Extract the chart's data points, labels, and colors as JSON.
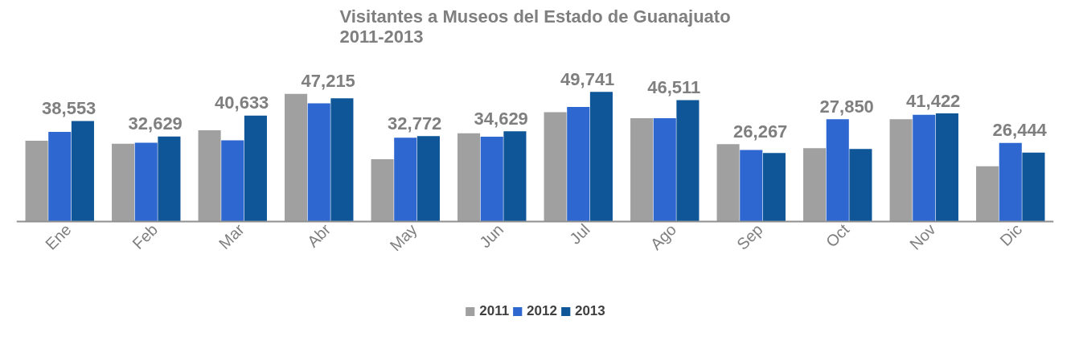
{
  "chart_data": {
    "type": "bar",
    "title": "Visitantes a Museos del Estado de Guanajuato\n2011-2013",
    "categories": [
      "Ene",
      "Feb",
      "Mar",
      "Abr",
      "May",
      "Jun",
      "Jul",
      "Ago",
      "Sep",
      "Oct",
      "Nov",
      "Dic"
    ],
    "series": [
      {
        "name": "2011",
        "color": "#a0a0a0",
        "values": [
          31000,
          29800,
          35000,
          48900,
          23900,
          33800,
          41900,
          39600,
          29700,
          28100,
          39200,
          21200
        ]
      },
      {
        "name": "2012",
        "color": "#2e67d0",
        "values": [
          34400,
          30200,
          31100,
          45300,
          32100,
          32500,
          43900,
          39600,
          27400,
          39200,
          40900,
          30100
        ]
      },
      {
        "name": "2013",
        "color": "#0f5699",
        "values": [
          38553,
          32629,
          40633,
          47215,
          32772,
          34629,
          49741,
          46511,
          26267,
          27850,
          41422,
          26444
        ],
        "value_labels": [
          "38,553",
          "32,629",
          "40,633",
          "47,215",
          "32,772",
          "34,629",
          "49,741",
          "46,511",
          "26,267",
          "27,850",
          "41,422",
          "26,444"
        ]
      }
    ],
    "legend": "bottom",
    "tick_labels": "x"
  }
}
